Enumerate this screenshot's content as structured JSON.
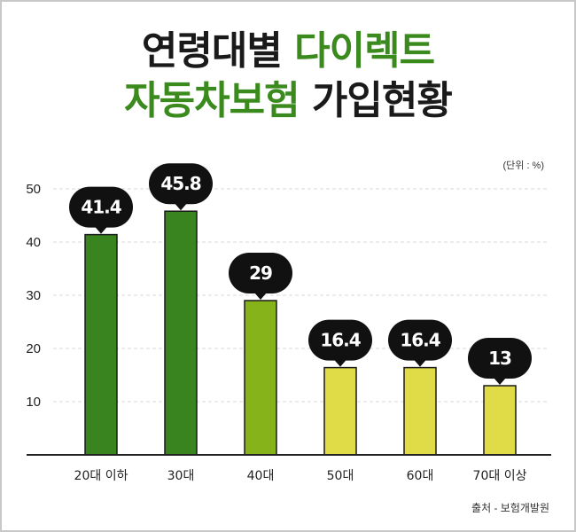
{
  "title": {
    "line1_dark": "연령대별",
    "line1_green": "다이렉트",
    "line2_green": "자동차보험",
    "line2_dark": "가입현황"
  },
  "unit_label": "(단위 : %)",
  "source_label": "출처 - 보험개발원",
  "colors": {
    "accent_green": "#3a8a1e",
    "title_dark": "#1a1a1a",
    "bubble": "#111111"
  },
  "chart_data": {
    "type": "bar",
    "categories": [
      "20대 이하",
      "30대",
      "40대",
      "50대",
      "60대",
      "70대 이상"
    ],
    "values": [
      41.4,
      45.8,
      29,
      16.4,
      16.4,
      13
    ],
    "data_labels": [
      "41.4",
      "45.8",
      "29",
      "16.4",
      "16.4",
      "13"
    ],
    "bar_colors": [
      "#3a8420",
      "#3a8420",
      "#86b21a",
      "#e0dc48",
      "#e0dc48",
      "#e0dc48"
    ],
    "yticks": [
      10,
      20,
      30,
      40,
      50
    ],
    "ylim": [
      0,
      50
    ],
    "grid": true,
    "legend": "none"
  }
}
